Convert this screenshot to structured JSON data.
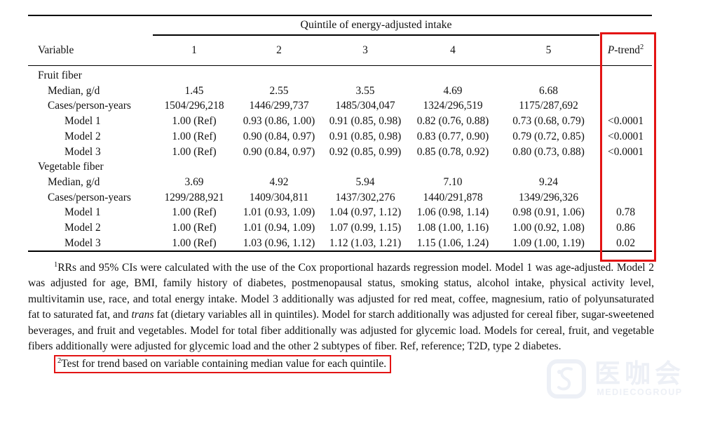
{
  "colors": {
    "annotation_red": "#e31414",
    "rule_black": "#000000",
    "watermark_gray": "#edf0f6"
  },
  "table": {
    "spanner": "Quintile of energy-adjusted intake",
    "variable_header": "Variable",
    "quintile_labels": [
      "1",
      "2",
      "3",
      "4",
      "5"
    ],
    "ptrend_header": {
      "p": "P",
      "rest": "-trend",
      "sup": "2"
    },
    "rows": [
      {
        "label": "Fruit fiber",
        "indent": 0,
        "cells": [
          "",
          "",
          "",
          "",
          ""
        ],
        "ptrend": ""
      },
      {
        "label": "Median, g/d",
        "indent": 1,
        "cells": [
          "1.45",
          "2.55",
          "3.55",
          "4.69",
          "6.68"
        ],
        "ptrend": ""
      },
      {
        "label": "Cases/person-years",
        "indent": 1,
        "cells": [
          "1504/296,218",
          "1446/299,737",
          "1485/304,047",
          "1324/296,519",
          "1175/287,692"
        ],
        "ptrend": ""
      },
      {
        "label": "Model 1",
        "indent": 2,
        "cells": [
          "1.00 (Ref)",
          "0.93 (0.86, 1.00)",
          "0.91 (0.85, 0.98)",
          "0.82 (0.76, 0.88)",
          "0.73 (0.68, 0.79)"
        ],
        "ptrend": "<0.0001"
      },
      {
        "label": "Model 2",
        "indent": 2,
        "cells": [
          "1.00 (Ref)",
          "0.90 (0.84, 0.97)",
          "0.91 (0.85, 0.98)",
          "0.83 (0.77, 0.90)",
          "0.79 (0.72, 0.85)"
        ],
        "ptrend": "<0.0001"
      },
      {
        "label": "Model 3",
        "indent": 2,
        "cells": [
          "1.00 (Ref)",
          "0.90 (0.84, 0.97)",
          "0.92 (0.85, 0.99)",
          "0.85 (0.78, 0.92)",
          "0.80 (0.73, 0.88)"
        ],
        "ptrend": "<0.0001"
      },
      {
        "label": "Vegetable fiber",
        "indent": 0,
        "cells": [
          "",
          "",
          "",
          "",
          ""
        ],
        "ptrend": ""
      },
      {
        "label": "Median, g/d",
        "indent": 1,
        "cells": [
          "3.69",
          "4.92",
          "5.94",
          "7.10",
          "9.24"
        ],
        "ptrend": ""
      },
      {
        "label": "Cases/person-years",
        "indent": 1,
        "cells": [
          "1299/288,921",
          "1409/304,811",
          "1437/302,276",
          "1440/291,878",
          "1349/296,326"
        ],
        "ptrend": ""
      },
      {
        "label": "Model 1",
        "indent": 2,
        "cells": [
          "1.00 (Ref)",
          "1.01 (0.93, 1.09)",
          "1.04 (0.97, 1.12)",
          "1.06 (0.98, 1.14)",
          "0.98 (0.91, 1.06)"
        ],
        "ptrend": "0.78"
      },
      {
        "label": "Model 2",
        "indent": 2,
        "cells": [
          "1.00 (Ref)",
          "1.01 (0.94, 1.09)",
          "1.07 (0.99, 1.15)",
          "1.08 (1.00, 1.16)",
          "1.00 (0.92, 1.08)"
        ],
        "ptrend": "0.86"
      },
      {
        "label": "Model 3",
        "indent": 2,
        "cells": [
          "1.00 (Ref)",
          "1.03 (0.96, 1.12)",
          "1.12 (1.03, 1.21)",
          "1.15 (1.06, 1.24)",
          "1.09 (1.00, 1.19)"
        ],
        "ptrend": "0.02"
      }
    ]
  },
  "footnotes": {
    "fn1_marker": "1",
    "fn1_seg1": "RRs and 95% CIs were calculated with the use of the Cox proportional hazards regression model. Model 1 was age-adjusted. Model 2 was adjusted for age, BMI, family history of diabetes, postmenopausal status, smoking status, alcohol intake, physical activity level, multivitamin use, race, and total energy intake. Model 3 additionally was adjusted for red meat, coffee, magnesium, ratio of polyunsaturated fat to saturated fat, and ",
    "fn1_italic": "trans",
    "fn1_seg2": " fat (dietary variables all in quintiles). Model for starch additionally was adjusted for cereal fiber, sugar-sweetened beverages, and fruit and vegetables. Model for total fiber additionally was adjusted for glycemic load. Models for cereal, fruit, and vegetable fibers additionally were adjusted for glycemic load and the other 2 subtypes of fiber. Ref, reference; T2D, type 2 diabetes.",
    "fn2_marker": "2",
    "fn2_text": "Test for trend based on variable containing median value for each quintile."
  },
  "watermark": {
    "cjk": "医咖会",
    "latin": "MEDIECOGROUP"
  }
}
